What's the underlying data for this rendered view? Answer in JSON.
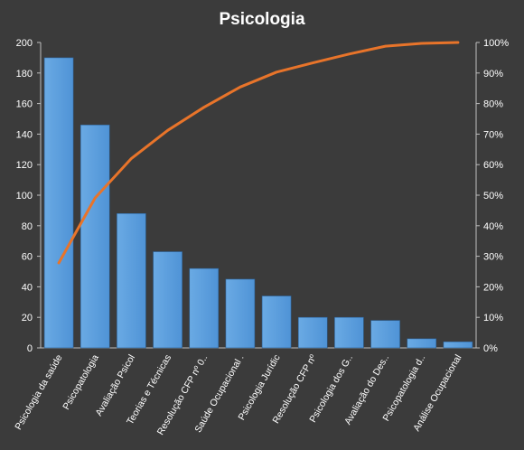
{
  "chart_data": {
    "type": "bar",
    "title": "Psicologia",
    "categories": [
      "Psicologia da saúde",
      "Psicopatologia",
      "Avaliação Psicol",
      "Teorias e Técnicas",
      "Resolução CFP nº 0..",
      "Saúde Ocupacional .",
      "Psicologia Jurídic",
      "Resolução CFP nº",
      "Psicologia dos G..",
      "Avaliação do Des..",
      "Psicopatologia d..",
      "Análise Ocupacional"
    ],
    "series": [
      {
        "type": "bar",
        "axis": "left",
        "values": [
          190,
          146,
          88,
          63,
          52,
          45,
          34,
          20,
          20,
          18,
          6,
          4
        ]
      },
      {
        "type": "line",
        "axis": "right",
        "values": [
          27.8,
          49.1,
          62.0,
          71.2,
          78.8,
          85.4,
          90.3,
          93.3,
          96.2,
          98.8,
          99.7,
          100
        ]
      }
    ],
    "ylim_left": [
      0,
      200
    ],
    "ylim_right": [
      0,
      100
    ],
    "yticks_left": [
      "0",
      "20",
      "40",
      "60",
      "80",
      "100",
      "120",
      "140",
      "160",
      "180",
      "200"
    ],
    "yticks_right": [
      "0%",
      "10%",
      "20%",
      "30%",
      "40%",
      "50%",
      "60%",
      "70%",
      "80%",
      "90%",
      "100%"
    ],
    "grid": false,
    "legend": "none",
    "colors": {
      "bar": "#4f93d6",
      "bar_light": "#6aaae4",
      "line": "#e8742a",
      "background": "#3b3b3b",
      "text": "#ffffff",
      "axis": "#bfbfbf"
    }
  }
}
